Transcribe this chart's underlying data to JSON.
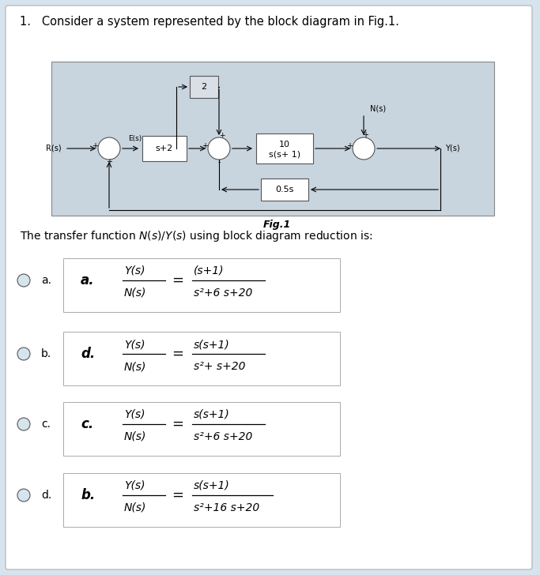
{
  "title": "1.   Consider a system represented by the block diagram in Fig.1.",
  "fig_label": "Fig.1",
  "transfer_text": "The transfer function $N(s)/Y(s)$ using block diagram reduction is:",
  "bg_diagram": "#c8d4de",
  "outer_bg": "#d6e4ee",
  "white_bg": "#ffffff",
  "option_bg": "#e4edf5",
  "options": [
    {
      "radio_label": "a.",
      "inner_label": "a.",
      "lhs_num": "Y(s)",
      "lhs_den": "N(s)",
      "rhs_num": "(s+1)",
      "rhs_den": "s²+6 s+20"
    },
    {
      "radio_label": "b.",
      "inner_label": "d.",
      "lhs_num": "Y(s)",
      "lhs_den": "N(s)",
      "rhs_num": "s(s+1)",
      "rhs_den": "s²+ s+20"
    },
    {
      "radio_label": "c.",
      "inner_label": "c.",
      "lhs_num": "Y(s)",
      "lhs_den": "N(s)",
      "rhs_num": "s(s+1)",
      "rhs_den": "s²+6 s+20"
    },
    {
      "radio_label": "d.",
      "inner_label": "b.",
      "lhs_num": "Y(s)",
      "lhs_den": "N(s)",
      "rhs_num": "s(s+1)",
      "rhs_den": "s²+16 s+20"
    }
  ]
}
